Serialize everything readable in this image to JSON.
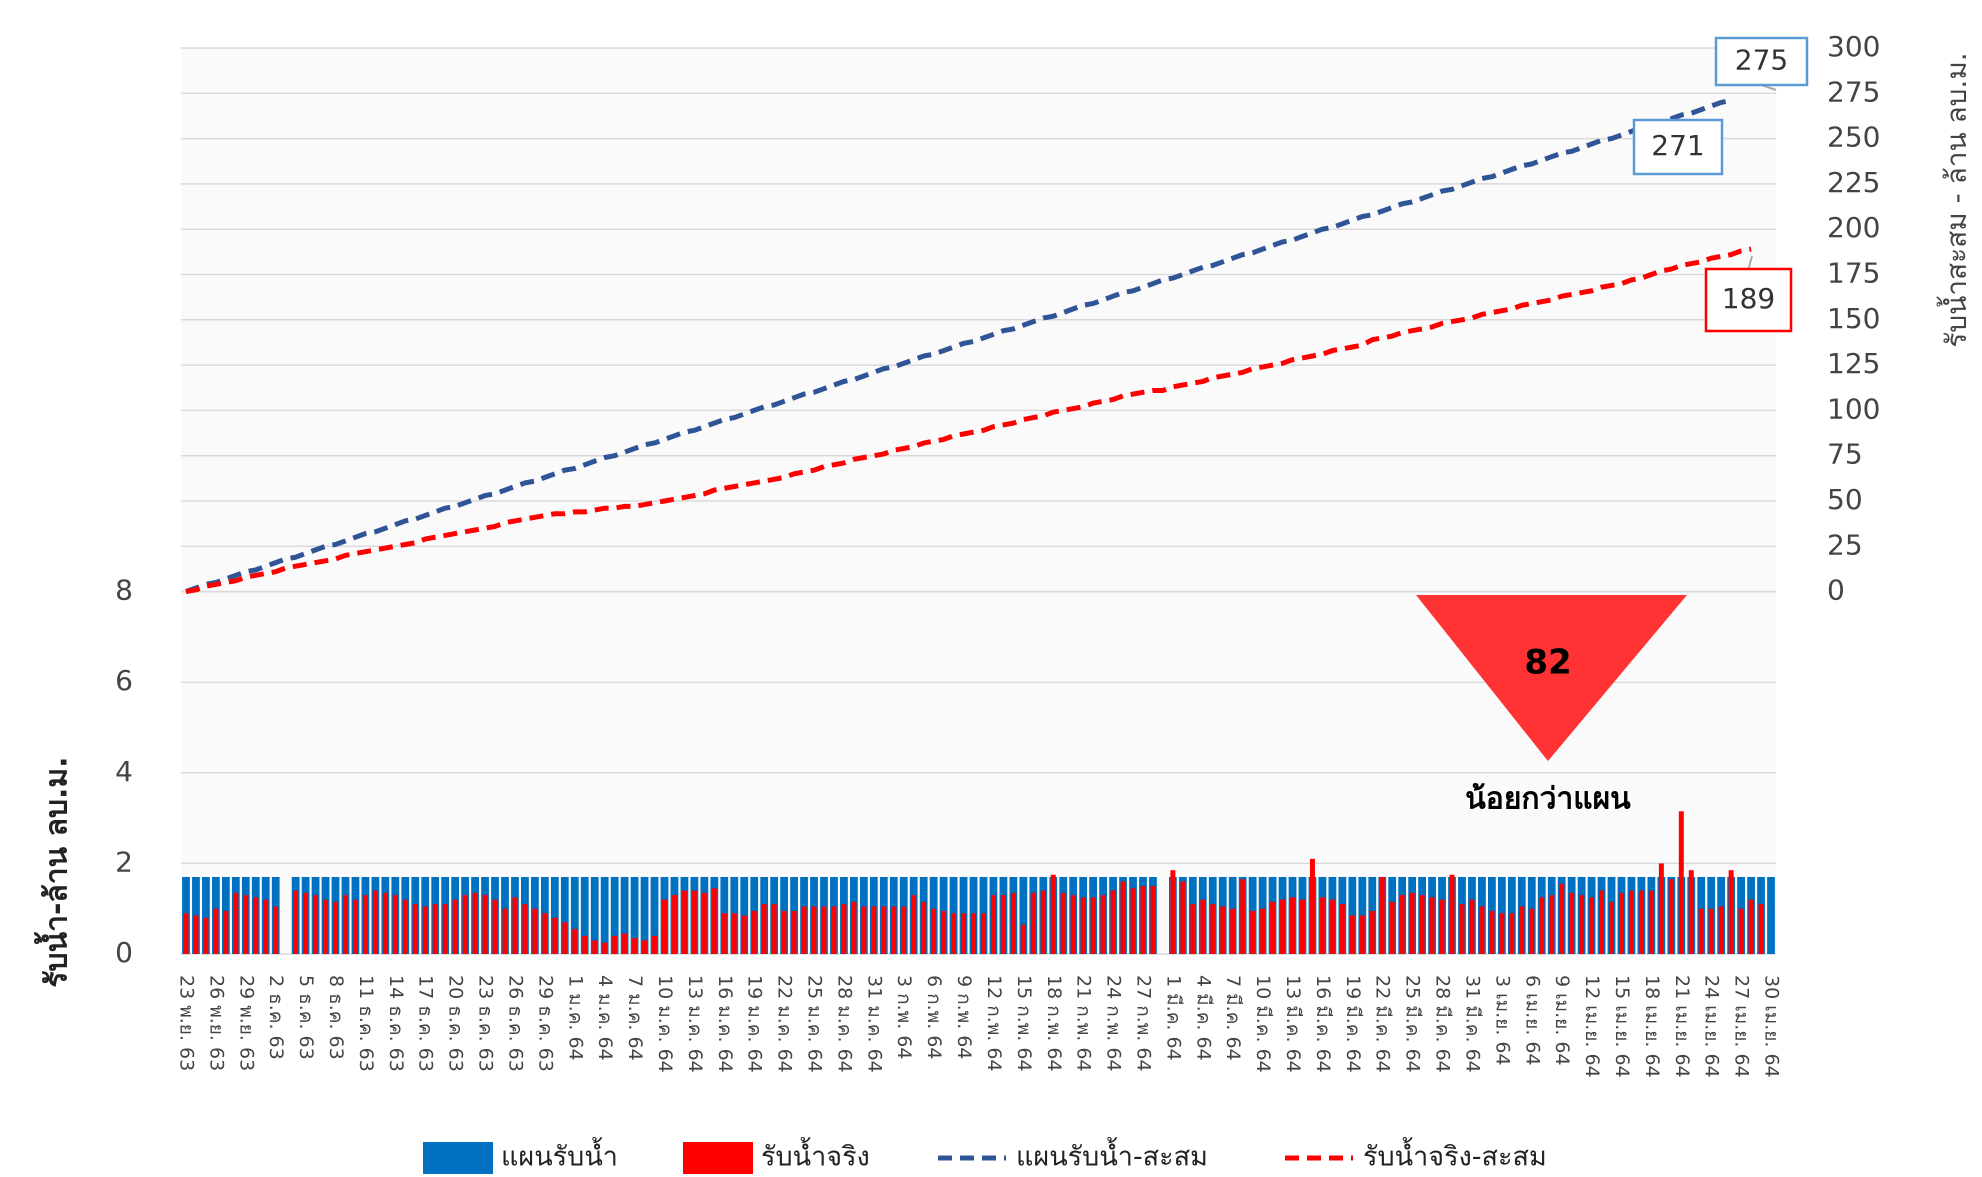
{
  "chart_data": {
    "type": "combo",
    "ylabel": "รับน้ำ-ล้าน ลบ.ม.",
    "y2label": "รับน้ำสะสม - ล้าน ลบ.ม.",
    "categories": [
      "23 พ.ย. 63",
      null,
      null,
      "26 พ.ย. 63",
      null,
      null,
      "29 พ.ย. 63",
      null,
      null,
      "2 ธ.ค. 63",
      null,
      null,
      "5 ธ.ค. 63",
      null,
      null,
      "8 ธ.ค. 63",
      null,
      null,
      "11 ธ.ค. 63",
      null,
      null,
      "14 ธ.ค. 63",
      null,
      null,
      "17 ธ.ค. 63",
      null,
      null,
      "20 ธ.ค. 63",
      null,
      null,
      "23 ธ.ค. 63",
      null,
      null,
      "26 ธ.ค. 63",
      null,
      null,
      "29 ธ.ค. 63",
      null,
      null,
      "1 ม.ค. 64",
      null,
      null,
      "4 ม.ค. 64",
      null,
      null,
      "7 ม.ค. 64",
      null,
      null,
      "10 ม.ค. 64",
      null,
      null,
      "13 ม.ค. 64",
      null,
      null,
      "16 ม.ค. 64",
      null,
      null,
      "19 ม.ค. 64",
      null,
      null,
      "22 ม.ค. 64",
      null,
      null,
      "25 ม.ค. 64",
      null,
      null,
      "28 ม.ค. 64",
      null,
      null,
      "31 ม.ค. 64",
      null,
      null,
      "3 ก.พ. 64",
      null,
      null,
      "6 ก.พ. 64",
      null,
      null,
      "9 ก.พ. 64",
      null,
      null,
      "12 ก.พ. 64",
      null,
      null,
      "15 ก.พ. 64",
      null,
      null,
      "18 ก.พ. 64",
      null,
      null,
      "21 ก.พ. 64",
      null,
      null,
      "24 ก.พ. 64",
      null,
      null,
      "27 ก.พ. 64",
      null,
      null,
      "1 มี.ค. 64",
      null,
      null,
      "4 มี.ค. 64",
      null,
      null,
      "7 มี.ค. 64",
      null,
      null,
      "10 มี.ค. 64",
      null,
      null,
      "13 มี.ค. 64",
      null,
      null,
      "16 มี.ค. 64",
      null,
      null,
      "19 มี.ค. 64",
      null,
      null,
      "22 มี.ค. 64",
      null,
      null,
      "25 มี.ค. 64",
      null,
      null,
      "28 มี.ค. 64",
      null,
      null,
      "31 มี.ค. 64",
      null,
      null,
      "3 เม.ย. 64",
      null,
      null,
      "6 เม.ย. 64",
      null,
      null,
      "9 เม.ย. 64",
      null,
      null,
      "12 เม.ย. 64",
      null,
      null,
      "15 เม.ย. 64",
      null,
      null,
      "18 เม.ย. 64",
      null,
      null,
      "21 เม.ย. 64",
      null,
      null,
      "24 เม.ย. 64",
      null,
      null,
      "27 เม.ย. 64",
      null,
      null,
      "30 เม.ย. 64"
    ],
    "series": [
      {
        "name": "แผนรับน้ำ",
        "type": "bar",
        "color": "#0070c0",
        "values": [
          1.7,
          1.7,
          1.7,
          1.7,
          1.7,
          1.7,
          1.7,
          1.7,
          1.7,
          1.7,
          null,
          1.7,
          1.7,
          1.7,
          1.7,
          1.7,
          1.7,
          1.7,
          1.7,
          1.7,
          1.7,
          1.7,
          1.7,
          1.7,
          1.7,
          1.7,
          1.7,
          1.7,
          1.7,
          1.7,
          1.7,
          1.7,
          1.7,
          1.7,
          1.7,
          1.7,
          1.7,
          1.7,
          1.7,
          1.7,
          1.7,
          1.7,
          1.7,
          1.7,
          1.7,
          1.7,
          1.7,
          1.7,
          1.7,
          1.7,
          1.7,
          1.7,
          1.7,
          1.7,
          1.7,
          1.7,
          1.7,
          1.7,
          1.7,
          1.7,
          1.7,
          1.7,
          1.7,
          1.7,
          1.7,
          1.7,
          1.7,
          1.7,
          1.7,
          1.7,
          1.7,
          1.7,
          1.7,
          1.7,
          1.7,
          1.7,
          1.7,
          1.7,
          1.7,
          1.7,
          1.7,
          1.7,
          1.7,
          1.7,
          1.7,
          1.7,
          1.7,
          1.7,
          1.7,
          1.7,
          1.7,
          1.7,
          1.7,
          1.7,
          1.7,
          1.7,
          1.7,
          1.7,
          null,
          1.7,
          1.7,
          1.7,
          1.7,
          1.7,
          1.7,
          1.7,
          1.7,
          1.7,
          1.7,
          1.7,
          1.7,
          1.7,
          1.7,
          1.7,
          1.7,
          1.7,
          1.7,
          1.7,
          1.7,
          1.7,
          1.7,
          1.7,
          1.7,
          1.7,
          1.7,
          1.7,
          1.7,
          1.7,
          1.7,
          1.7,
          1.7,
          1.7,
          1.7,
          1.7,
          1.7,
          1.7,
          1.7,
          1.7,
          1.7,
          1.7,
          1.7,
          1.7,
          1.7,
          1.7,
          1.7,
          1.7,
          1.7,
          1.7,
          1.7,
          1.7,
          1.7,
          1.7,
          1.7,
          1.7,
          1.7,
          1.7,
          1.7,
          1.7,
          1.7,
          1.7
        ]
      },
      {
        "name": "รับน้ำจริง",
        "type": "bar",
        "color": "#ff0000",
        "values": [
          0.9,
          0.85,
          0.8,
          1.0,
          0.95,
          1.35,
          1.3,
          1.25,
          1.2,
          1.05,
          null,
          1.4,
          1.35,
          1.3,
          1.2,
          1.15,
          1.3,
          1.2,
          1.3,
          1.4,
          1.35,
          1.3,
          1.2,
          1.1,
          1.05,
          1.1,
          1.1,
          1.2,
          1.3,
          1.35,
          1.3,
          1.2,
          1.0,
          1.25,
          1.1,
          1.0,
          0.9,
          0.8,
          0.7,
          0.55,
          0.4,
          0.3,
          0.25,
          0.4,
          0.45,
          0.35,
          0.3,
          0.4,
          1.2,
          1.3,
          1.4,
          1.4,
          1.35,
          1.45,
          0.9,
          0.9,
          0.85,
          0.95,
          1.1,
          1.1,
          0.95,
          0.95,
          1.05,
          1.05,
          1.05,
          1.05,
          1.1,
          1.15,
          1.05,
          1.05,
          1.05,
          1.05,
          1.05,
          1.3,
          1.15,
          1.0,
          0.95,
          0.9,
          0.9,
          0.9,
          0.9,
          1.3,
          1.3,
          1.35,
          0.65,
          1.35,
          1.4,
          1.75,
          1.35,
          1.3,
          1.25,
          1.25,
          1.3,
          1.4,
          1.6,
          1.45,
          1.5,
          1.5,
          null,
          1.85,
          1.6,
          1.1,
          1.2,
          1.1,
          1.05,
          1.0,
          1.65,
          0.95,
          1.0,
          1.15,
          1.2,
          1.25,
          1.2,
          2.1,
          1.25,
          1.2,
          1.1,
          0.85,
          0.85,
          0.95,
          1.7,
          1.15,
          1.3,
          1.35,
          1.3,
          1.25,
          1.2,
          1.75,
          1.1,
          1.2,
          1.05,
          0.95,
          0.9,
          0.9,
          1.05,
          1.0,
          1.25,
          1.3,
          1.55,
          1.35,
          1.3,
          1.25,
          1.4,
          1.15,
          1.35,
          1.4,
          1.4,
          1.4,
          2.0,
          1.65,
          3.15,
          1.85,
          1.0,
          1.0,
          1.05,
          1.85,
          1.0,
          1.2,
          1.1,
          null
        ]
      },
      {
        "name": "แผนรับน้ำ-สะสม",
        "type": "line",
        "axis": "y2",
        "color": "#2f5597",
        "dashed": true,
        "values": [
          0,
          2,
          4,
          5,
          7,
          9,
          11,
          12,
          14,
          16,
          18,
          19,
          21,
          23,
          25,
          26,
          28,
          30,
          32,
          33,
          35,
          37,
          39,
          40,
          42,
          44,
          46,
          47,
          49,
          51,
          53,
          54,
          56,
          58,
          60,
          61,
          63,
          65,
          67,
          68,
          70,
          72,
          74,
          75,
          77,
          79,
          81,
          82,
          84,
          86,
          88,
          89,
          91,
          93,
          95,
          96,
          98,
          100,
          102,
          103,
          105,
          107,
          109,
          110,
          112,
          114,
          116,
          117,
          119,
          121,
          123,
          124,
          126,
          128,
          130,
          131,
          133,
          135,
          137,
          138,
          140,
          142,
          144,
          145,
          147,
          149,
          151,
          152,
          154,
          156,
          158,
          159,
          161,
          163,
          165,
          166,
          168,
          170,
          172,
          173,
          175,
          177,
          179,
          180,
          182,
          184,
          186,
          187,
          189,
          191,
          193,
          194,
          196,
          198,
          200,
          201,
          203,
          205,
          207,
          208,
          210,
          212,
          214,
          215,
          217,
          219,
          221,
          222,
          224,
          226,
          228,
          229,
          231,
          233,
          235,
          236,
          238,
          240,
          242,
          243,
          245,
          247,
          249,
          250,
          252,
          254,
          256,
          257,
          259,
          261,
          263,
          264,
          266,
          268,
          270,
          271,
          null,
          null,
          null,
          null
        ]
      },
      {
        "name": "รับน้ำจริง-สะสม",
        "type": "line",
        "axis": "y2",
        "color": "#ff0000",
        "dashed": true,
        "values": [
          0,
          1,
          3,
          4,
          5,
          6,
          8,
          9,
          10,
          11,
          13,
          14,
          15,
          16,
          17,
          18,
          20,
          21,
          22,
          23,
          24,
          25,
          26,
          27,
          29,
          30,
          31,
          32,
          33,
          34,
          35,
          36,
          38,
          39,
          40,
          41,
          42,
          43,
          43,
          44,
          44,
          45,
          46,
          46,
          47,
          47,
          48,
          49,
          50,
          51,
          52,
          53,
          54,
          56,
          57,
          58,
          59,
          60,
          61,
          62,
          63,
          65,
          66,
          67,
          69,
          70,
          71,
          73,
          74,
          75,
          76,
          78,
          79,
          80,
          82,
          83,
          84,
          86,
          87,
          88,
          89,
          91,
          92,
          93,
          95,
          96,
          97,
          99,
          100,
          101,
          102,
          104,
          105,
          106,
          108,
          109,
          110,
          111,
          111,
          113,
          114,
          115,
          116,
          118,
          119,
          120,
          121,
          123,
          124,
          125,
          126,
          128,
          129,
          130,
          131,
          133,
          134,
          135,
          136,
          139,
          140,
          141,
          143,
          144,
          145,
          146,
          148,
          149,
          150,
          151,
          153,
          154,
          155,
          156,
          158,
          159,
          160,
          161,
          163,
          164,
          165,
          166,
          168,
          169,
          170,
          172,
          173,
          175,
          177,
          178,
          180,
          181,
          182,
          184,
          185,
          186,
          188,
          189,
          null,
          null
        ]
      }
    ],
    "ylim": [
      0,
      20
    ],
    "yticks": [
      0,
      2,
      4,
      6,
      8
    ],
    "y2lim": [
      -200,
      300
    ],
    "y2ticks": [
      0,
      25,
      50,
      75,
      100,
      125,
      150,
      175,
      200,
      225,
      250,
      275,
      300
    ],
    "grid": true,
    "legend": "bottom",
    "annotations": [
      {
        "text": "275",
        "color": "#5b9bd5"
      },
      {
        "text": "271",
        "color": "#5b9bd5"
      },
      {
        "text": "189",
        "color": "#ff0000"
      },
      {
        "text": "82",
        "color": "#ff3333"
      },
      {
        "text": "น้อยกว่าแผน",
        "color": "#000000"
      }
    ]
  }
}
